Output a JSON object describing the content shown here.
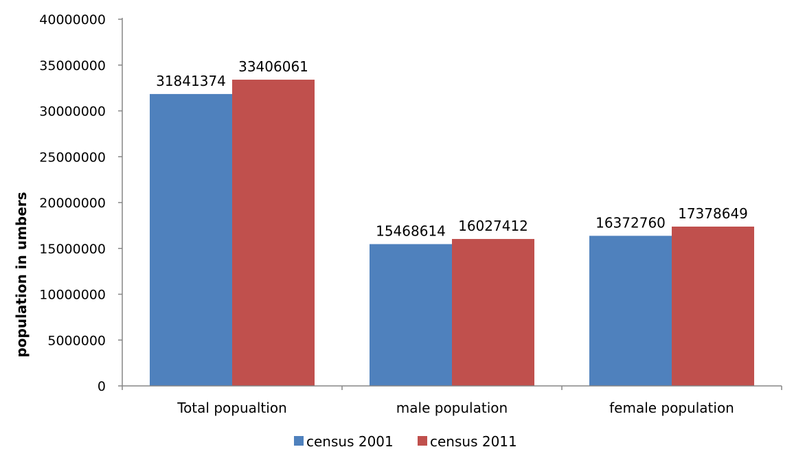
{
  "chart_data": {
    "type": "bar",
    "categories": [
      "Total popualtion",
      "male population",
      "female population"
    ],
    "series": [
      {
        "name": "census 2001",
        "values": [
          31841374,
          15468614,
          16372760
        ],
        "color": "#4F81BD"
      },
      {
        "name": "census 2011",
        "values": [
          33406061,
          16027412,
          17378649
        ],
        "color": "#C0504D"
      }
    ],
    "data_labels": [
      [
        "31841374",
        "15468614",
        "16372760"
      ],
      [
        "33406061",
        "16027412",
        "17378649"
      ]
    ],
    "ylabel": "population in umbers",
    "ylim": [
      0,
      40000000
    ],
    "yticks": [
      0,
      5000000,
      10000000,
      15000000,
      20000000,
      25000000,
      30000000,
      35000000,
      40000000
    ],
    "ytick_labels": [
      "0",
      "5000000",
      "10000000",
      "15000000",
      "20000000",
      "25000000",
      "30000000",
      "35000000",
      "40000000"
    ],
    "grid": false,
    "legend_position": "bottom"
  }
}
